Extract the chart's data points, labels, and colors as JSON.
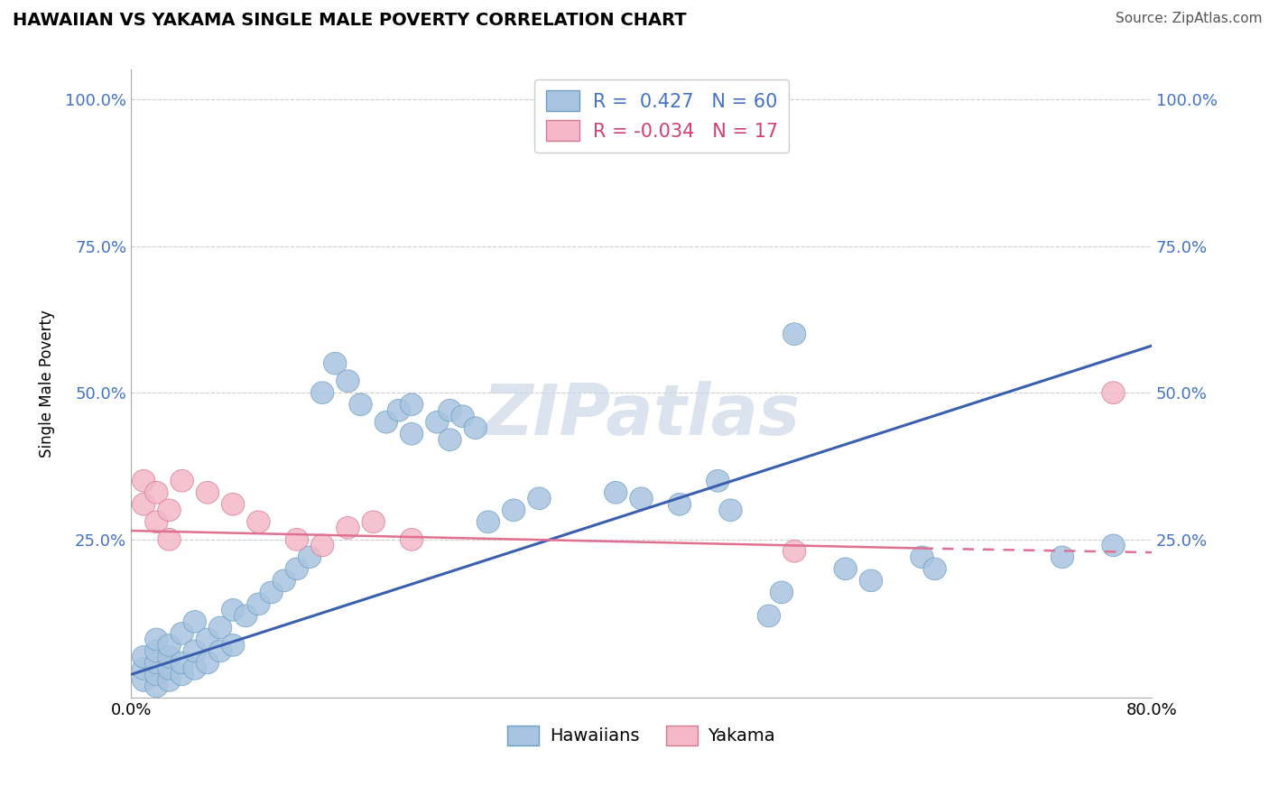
{
  "title": "HAWAIIAN VS YAKAMA SINGLE MALE POVERTY CORRELATION CHART",
  "source": "Source: ZipAtlas.com",
  "ylabel": "Single Male Poverty",
  "xlim": [
    0.0,
    0.8
  ],
  "ylim": [
    -0.02,
    1.05
  ],
  "y_ticks": [
    0.0,
    0.25,
    0.5,
    0.75,
    1.0
  ],
  "y_tick_labels": [
    "",
    "25.0%",
    "50.0%",
    "75.0%",
    "100.0%"
  ],
  "hawaiian_color": "#a8c4e0",
  "hawaiian_edge": "#6a9fc0",
  "yakama_color": "#f4b8c8",
  "yakama_edge": "#d47890",
  "line_hawaiian_color": "#3a5faf",
  "line_yakama_color": "#e07090",
  "watermark_color": "#ccd8e8",
  "hawaiian_x": [
    0.01,
    0.01,
    0.01,
    0.02,
    0.02,
    0.02,
    0.02,
    0.02,
    0.03,
    0.03,
    0.03,
    0.03,
    0.04,
    0.04,
    0.04,
    0.05,
    0.05,
    0.05,
    0.06,
    0.06,
    0.07,
    0.07,
    0.08,
    0.08,
    0.09,
    0.1,
    0.11,
    0.12,
    0.13,
    0.14,
    0.15,
    0.16,
    0.17,
    0.18,
    0.2,
    0.21,
    0.22,
    0.22,
    0.24,
    0.25,
    0.25,
    0.26,
    0.27,
    0.28,
    0.3,
    0.32,
    0.38,
    0.4,
    0.43,
    0.46,
    0.47,
    0.5,
    0.51,
    0.52,
    0.56,
    0.58,
    0.62,
    0.63,
    0.73,
    0.77
  ],
  "hawaiian_y": [
    0.01,
    0.03,
    0.05,
    0.0,
    0.02,
    0.04,
    0.06,
    0.08,
    0.01,
    0.03,
    0.05,
    0.07,
    0.02,
    0.04,
    0.09,
    0.03,
    0.06,
    0.11,
    0.04,
    0.08,
    0.06,
    0.1,
    0.07,
    0.13,
    0.12,
    0.14,
    0.16,
    0.18,
    0.2,
    0.22,
    0.5,
    0.55,
    0.52,
    0.48,
    0.45,
    0.47,
    0.43,
    0.48,
    0.45,
    0.42,
    0.47,
    0.46,
    0.44,
    0.28,
    0.3,
    0.32,
    0.33,
    0.32,
    0.31,
    0.35,
    0.3,
    0.12,
    0.16,
    0.6,
    0.2,
    0.18,
    0.22,
    0.2,
    0.22,
    0.24
  ],
  "yakama_x": [
    0.01,
    0.01,
    0.02,
    0.02,
    0.03,
    0.03,
    0.04,
    0.06,
    0.08,
    0.1,
    0.13,
    0.15,
    0.17,
    0.19,
    0.22,
    0.52,
    0.77
  ],
  "yakama_y": [
    0.31,
    0.35,
    0.28,
    0.33,
    0.25,
    0.3,
    0.35,
    0.33,
    0.31,
    0.28,
    0.25,
    0.24,
    0.27,
    0.28,
    0.25,
    0.23,
    0.5
  ],
  "line_h_x0": 0.0,
  "line_h_y0": 0.02,
  "line_h_x1": 0.8,
  "line_h_y1": 0.58,
  "line_y_x0": 0.0,
  "line_y_y0": 0.265,
  "line_y_x1": 0.62,
  "line_y_y1": 0.235,
  "line_y_dash_x0": 0.62,
  "line_y_dash_y0": 0.235,
  "line_y_dash_x1": 0.8,
  "line_y_dash_y1": 0.228
}
